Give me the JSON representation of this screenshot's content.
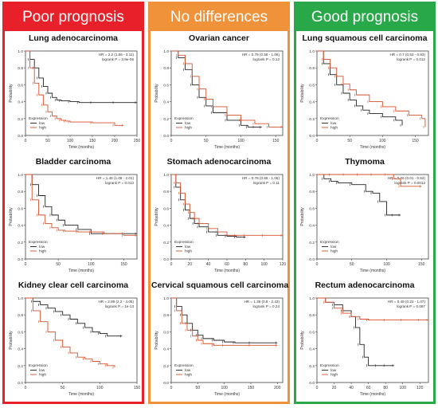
{
  "columns": [
    {
      "header": "Poor prognosis",
      "color": "#e8202a"
    },
    {
      "header": "No differences",
      "color": "#f0923a"
    },
    {
      "header": "Good prognosis",
      "color": "#29a84a"
    }
  ],
  "colors": {
    "low": "#222222",
    "high": "#d4502a"
  },
  "chart_data": [
    {
      "type": "line",
      "title": "Lung adenocarcinoma",
      "stats": [
        "HR = 2.2 (1.56 - 3.11)",
        "logrank P = 3.9e-06"
      ],
      "xlabel": "Time (months)",
      "ylabel": "Probability",
      "xlim": [
        0,
        250
      ],
      "ylim": [
        0,
        1
      ],
      "xticks": [
        0,
        50,
        100,
        150,
        200,
        250
      ],
      "yticks": [
        0,
        0.2,
        0.4,
        0.6,
        0.8,
        1.0
      ],
      "legend": {
        "title": "Expression",
        "entries": [
          "low",
          "high"
        ],
        "position": "bottom-left"
      },
      "series": [
        {
          "name": "low",
          "x": [
            0,
            10,
            20,
            30,
            40,
            50,
            60,
            70,
            80,
            100,
            120,
            150,
            200,
            250
          ],
          "y": [
            1.0,
            0.9,
            0.8,
            0.68,
            0.58,
            0.5,
            0.45,
            0.42,
            0.41,
            0.4,
            0.39,
            0.39,
            0.39,
            0.39
          ]
        },
        {
          "name": "high",
          "x": [
            0,
            10,
            20,
            30,
            40,
            50,
            60,
            70,
            80,
            90,
            100,
            150,
            200,
            220
          ],
          "y": [
            1.0,
            0.8,
            0.62,
            0.48,
            0.36,
            0.28,
            0.23,
            0.2,
            0.18,
            0.17,
            0.16,
            0.15,
            0.12,
            0.12
          ]
        }
      ]
    },
    {
      "type": "line",
      "title": "Ovarian cancer",
      "stats": [
        "HR = 0.79 (0.59 - 1.06)",
        "logrank P = 0.12"
      ],
      "xlabel": "Time (months)",
      "ylabel": "Probability",
      "xlim": [
        0,
        160
      ],
      "ylim": [
        0,
        1
      ],
      "xticks": [
        0,
        50,
        100,
        150
      ],
      "yticks": [
        0,
        0.2,
        0.4,
        0.6,
        0.8,
        1.0
      ],
      "legend": {
        "title": "Expression",
        "entries": [
          "low",
          "high"
        ],
        "position": "bottom-left"
      },
      "series": [
        {
          "name": "low",
          "x": [
            0,
            10,
            20,
            30,
            40,
            50,
            60,
            80,
            100,
            110,
            120,
            130
          ],
          "y": [
            1.0,
            0.92,
            0.78,
            0.6,
            0.45,
            0.35,
            0.27,
            0.18,
            0.12,
            0.1,
            0.1,
            0.1
          ]
        },
        {
          "name": "high",
          "x": [
            0,
            10,
            20,
            30,
            40,
            50,
            60,
            80,
            100,
            120,
            140,
            160
          ],
          "y": [
            1.0,
            0.95,
            0.85,
            0.7,
            0.55,
            0.43,
            0.34,
            0.24,
            0.18,
            0.14,
            0.1,
            0.1
          ]
        }
      ]
    },
    {
      "type": "line",
      "title": "Lung squamous cell carcinoma",
      "stats": [
        "HR = 0.7 (0.53 - 0.93)",
        "logrank P = 0.012"
      ],
      "xlabel": "Time (months)",
      "ylabel": "Probability",
      "xlim": [
        0,
        170
      ],
      "ylim": [
        0,
        1
      ],
      "xticks": [
        0,
        50,
        100,
        150
      ],
      "yticks": [
        0,
        0.2,
        0.4,
        0.6,
        0.8,
        1.0
      ],
      "legend": {
        "title": "Expression",
        "entries": [
          "low",
          "high"
        ],
        "position": "bottom-left"
      },
      "series": [
        {
          "name": "low",
          "x": [
            0,
            10,
            20,
            30,
            40,
            50,
            60,
            70,
            80,
            100,
            120,
            130
          ],
          "y": [
            1.0,
            0.85,
            0.72,
            0.6,
            0.5,
            0.42,
            0.35,
            0.3,
            0.26,
            0.22,
            0.18,
            0.12
          ]
        },
        {
          "name": "high",
          "x": [
            0,
            10,
            20,
            30,
            40,
            50,
            60,
            80,
            100,
            120,
            140,
            160,
            165
          ],
          "y": [
            1.0,
            0.9,
            0.8,
            0.7,
            0.61,
            0.54,
            0.48,
            0.4,
            0.34,
            0.29,
            0.24,
            0.2,
            0.1
          ]
        }
      ]
    },
    {
      "type": "line",
      "title": "Bladder carcinoma",
      "stats": [
        "HR = 1.48 (1.08 - 2.01)",
        "logrank P = 0.013"
      ],
      "xlabel": "Time (months)",
      "ylabel": "Probability",
      "xlim": [
        0,
        170
      ],
      "ylim": [
        0,
        1
      ],
      "xticks": [
        0,
        50,
        100,
        150
      ],
      "yticks": [
        0,
        0.2,
        0.4,
        0.6,
        0.8,
        1.0
      ],
      "legend": {
        "title": "Expression",
        "entries": [
          "low",
          "high"
        ],
        "position": "bottom-left"
      },
      "series": [
        {
          "name": "low",
          "x": [
            0,
            10,
            20,
            30,
            40,
            50,
            60,
            80,
            100,
            120,
            150,
            170
          ],
          "y": [
            1.0,
            0.88,
            0.75,
            0.62,
            0.52,
            0.46,
            0.4,
            0.35,
            0.3,
            0.3,
            0.3,
            0.3
          ]
        },
        {
          "name": "high",
          "x": [
            0,
            10,
            20,
            30,
            40,
            50,
            60,
            80,
            100,
            120,
            150,
            170
          ],
          "y": [
            1.0,
            0.7,
            0.52,
            0.42,
            0.37,
            0.34,
            0.33,
            0.32,
            0.32,
            0.3,
            0.28,
            0.28
          ]
        }
      ]
    },
    {
      "type": "line",
      "title": "Stomach adenocarcinoma",
      "stats": [
        "HR = 0.78 (0.55 - 1.06)",
        "logrank P = 0.11"
      ],
      "xlabel": "Time (months)",
      "ylabel": "Probability",
      "xlim": [
        0,
        120
      ],
      "ylim": [
        0,
        1
      ],
      "xticks": [
        0,
        20,
        40,
        60,
        80,
        100,
        120
      ],
      "yticks": [
        0,
        0.2,
        0.4,
        0.6,
        0.8,
        1.0
      ],
      "legend": {
        "title": "Expression",
        "entries": [
          "low",
          "high"
        ],
        "position": "bottom-left"
      },
      "series": [
        {
          "name": "low",
          "x": [
            0,
            5,
            10,
            15,
            20,
            25,
            30,
            40,
            50,
            60,
            70,
            80
          ],
          "y": [
            1.0,
            0.85,
            0.7,
            0.58,
            0.48,
            0.42,
            0.38,
            0.32,
            0.28,
            0.27,
            0.26,
            0.26
          ]
        },
        {
          "name": "high",
          "x": [
            0,
            5,
            10,
            15,
            20,
            25,
            30,
            40,
            50,
            60,
            70,
            80,
            100,
            120
          ],
          "y": [
            1.0,
            0.9,
            0.78,
            0.65,
            0.55,
            0.48,
            0.42,
            0.36,
            0.32,
            0.28,
            0.28,
            0.28,
            0.28,
            0.28
          ]
        }
      ]
    },
    {
      "type": "line",
      "title": "Thymoma",
      "stats": [
        "HR = 0.06 (0.01 - 0.53)",
        "logrank P = 0.0012"
      ],
      "xlabel": "Time (months)",
      "ylabel": "Probability",
      "xlim": [
        0,
        160
      ],
      "ylim": [
        0,
        1
      ],
      "xticks": [
        0,
        50,
        100,
        150
      ],
      "yticks": [
        0,
        0.2,
        0.4,
        0.6,
        0.8,
        1.0
      ],
      "legend": {
        "title": "Expression",
        "entries": [
          "low",
          "high"
        ],
        "position": "bottom-left"
      },
      "series": [
        {
          "name": "low",
          "x": [
            0,
            10,
            20,
            30,
            50,
            70,
            80,
            90,
            100,
            110,
            120
          ],
          "y": [
            1.0,
            0.95,
            0.92,
            0.9,
            0.88,
            0.8,
            0.78,
            0.68,
            0.52,
            0.52,
            0.52
          ]
        },
        {
          "name": "high",
          "x": [
            0,
            20,
            40,
            60,
            80,
            100,
            110,
            120,
            150
          ],
          "y": [
            1.0,
            1.0,
            1.0,
            1.0,
            1.0,
            1.0,
            0.95,
            0.86,
            0.86
          ]
        }
      ]
    },
    {
      "type": "line",
      "title": "Kidney clear cell carcinoma",
      "stats": [
        "HR = 2.99 (2.2 - 4.05)",
        "logrank P = 1e-13"
      ],
      "xlabel": "Time (months)",
      "ylabel": "Probability",
      "xlim": [
        0,
        150
      ],
      "ylim": [
        0,
        1
      ],
      "xticks": [
        0,
        50,
        100,
        150
      ],
      "yticks": [
        0,
        0.2,
        0.4,
        0.6,
        0.8,
        1.0
      ],
      "legend": {
        "title": "Expression",
        "entries": [
          "low",
          "high"
        ],
        "position": "bottom-left"
      },
      "series": [
        {
          "name": "low",
          "x": [
            0,
            10,
            20,
            30,
            40,
            50,
            60,
            70,
            80,
            90,
            100,
            110,
            130
          ],
          "y": [
            1.0,
            0.96,
            0.92,
            0.88,
            0.84,
            0.8,
            0.75,
            0.7,
            0.65,
            0.6,
            0.58,
            0.55,
            0.55
          ]
        },
        {
          "name": "high",
          "x": [
            0,
            10,
            20,
            30,
            40,
            50,
            60,
            70,
            80,
            90,
            100,
            110,
            120
          ],
          "y": [
            1.0,
            0.85,
            0.72,
            0.6,
            0.5,
            0.42,
            0.35,
            0.3,
            0.28,
            0.25,
            0.22,
            0.2,
            0.18
          ]
        }
      ]
    },
    {
      "type": "line",
      "title": "Cervical squamous cell carcinoma",
      "stats": [
        "HR = 1.39 (0.8 - 2.43)",
        "logrank P = 0.24"
      ],
      "xlabel": "Time (months)",
      "ylabel": "Probability",
      "xlim": [
        0,
        210
      ],
      "ylim": [
        0,
        1
      ],
      "xticks": [
        0,
        50,
        100,
        150,
        200
      ],
      "yticks": [
        0,
        0.2,
        0.4,
        0.6,
        0.8,
        1.0
      ],
      "legend": {
        "title": "Expression",
        "entries": [
          "low",
          "high"
        ],
        "position": "bottom-left"
      },
      "series": [
        {
          "name": "low",
          "x": [
            0,
            10,
            20,
            30,
            40,
            50,
            60,
            80,
            100,
            120,
            150,
            200
          ],
          "y": [
            1.0,
            0.9,
            0.8,
            0.7,
            0.62,
            0.56,
            0.52,
            0.5,
            0.48,
            0.47,
            0.47,
            0.47
          ]
        },
        {
          "name": "high",
          "x": [
            0,
            10,
            20,
            30,
            40,
            50,
            60,
            80,
            100,
            150,
            200
          ],
          "y": [
            1.0,
            0.85,
            0.7,
            0.62,
            0.55,
            0.5,
            0.46,
            0.44,
            0.44,
            0.44,
            0.44
          ]
        }
      ]
    },
    {
      "type": "line",
      "title": "Rectum adenocarcinoma",
      "stats": [
        "HR = 0.49 (0.23 - 1.07)",
        "logrank P = 0.067"
      ],
      "xlabel": "Time (months)",
      "ylabel": "Probability",
      "xlim": [
        0,
        130
      ],
      "ylim": [
        0,
        1
      ],
      "xticks": [
        0,
        20,
        40,
        60,
        80,
        100,
        120
      ],
      "yticks": [
        0,
        0.2,
        0.4,
        0.6,
        0.8,
        1.0
      ],
      "legend": {
        "title": "Expression",
        "entries": [
          "low",
          "high"
        ],
        "position": "bottom-left"
      },
      "series": [
        {
          "name": "low",
          "x": [
            0,
            10,
            20,
            30,
            40,
            45,
            50,
            55,
            60,
            70,
            80,
            90
          ],
          "y": [
            1.0,
            0.95,
            0.92,
            0.85,
            0.78,
            0.65,
            0.45,
            0.3,
            0.2,
            0.2,
            0.2,
            0.2
          ]
        },
        {
          "name": "high",
          "x": [
            0,
            10,
            20,
            30,
            40,
            50,
            60,
            80,
            100,
            120,
            130
          ],
          "y": [
            1.0,
            0.95,
            0.88,
            0.82,
            0.78,
            0.75,
            0.74,
            0.74,
            0.74,
            0.74,
            0.74
          ]
        }
      ]
    }
  ]
}
